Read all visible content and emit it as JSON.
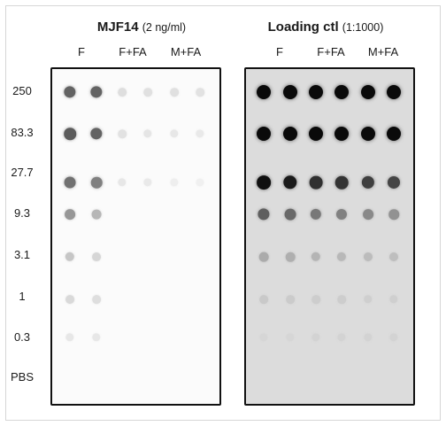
{
  "left_panel": {
    "title": "MJF14",
    "subtitle": "(2 ng/ml)",
    "columns": [
      "F",
      "F+FA",
      "M+FA"
    ],
    "dot_gray": [
      [
        0.62,
        0.62,
        0.1,
        0.09,
        0.09,
        0.08
      ],
      [
        0.65,
        0.62,
        0.08,
        0.07,
        0.06,
        0.05
      ],
      [
        0.56,
        0.5,
        0.06,
        0.05,
        0.03,
        0.02
      ],
      [
        0.4,
        0.27,
        0.0,
        0.0,
        0.0,
        0.0
      ],
      [
        0.2,
        0.13,
        0.0,
        0.0,
        0.0,
        0.0
      ],
      [
        0.12,
        0.1,
        0.0,
        0.0,
        0.0,
        0.0
      ],
      [
        0.06,
        0.06,
        0.0,
        0.0,
        0.0,
        0.0
      ],
      [
        0.0,
        0.0,
        0.0,
        0.0,
        0.0,
        0.0
      ]
    ]
  },
  "right_panel": {
    "title": "Loading ctl",
    "subtitle": "(1:1000)",
    "columns": [
      "F",
      "F+FA",
      "M+FA"
    ],
    "dot_gray": [
      [
        1.0,
        1.0,
        1.0,
        1.0,
        1.0,
        1.0
      ],
      [
        1.0,
        1.0,
        1.0,
        1.0,
        1.0,
        1.0
      ],
      [
        0.97,
        0.92,
        0.82,
        0.8,
        0.75,
        0.72
      ],
      [
        0.6,
        0.55,
        0.48,
        0.44,
        0.4,
        0.36
      ],
      [
        0.24,
        0.22,
        0.2,
        0.18,
        0.16,
        0.15
      ],
      [
        0.1,
        0.09,
        0.08,
        0.08,
        0.07,
        0.07
      ],
      [
        0.04,
        0.04,
        0.05,
        0.05,
        0.05,
        0.05
      ],
      [
        0.0,
        0.0,
        0.0,
        0.0,
        0.0,
        0.0
      ]
    ]
  },
  "row_labels": [
    "250",
    "83.3",
    "27.7",
    "9.3",
    "3.1",
    "1",
    "0.3",
    "PBS"
  ]
}
